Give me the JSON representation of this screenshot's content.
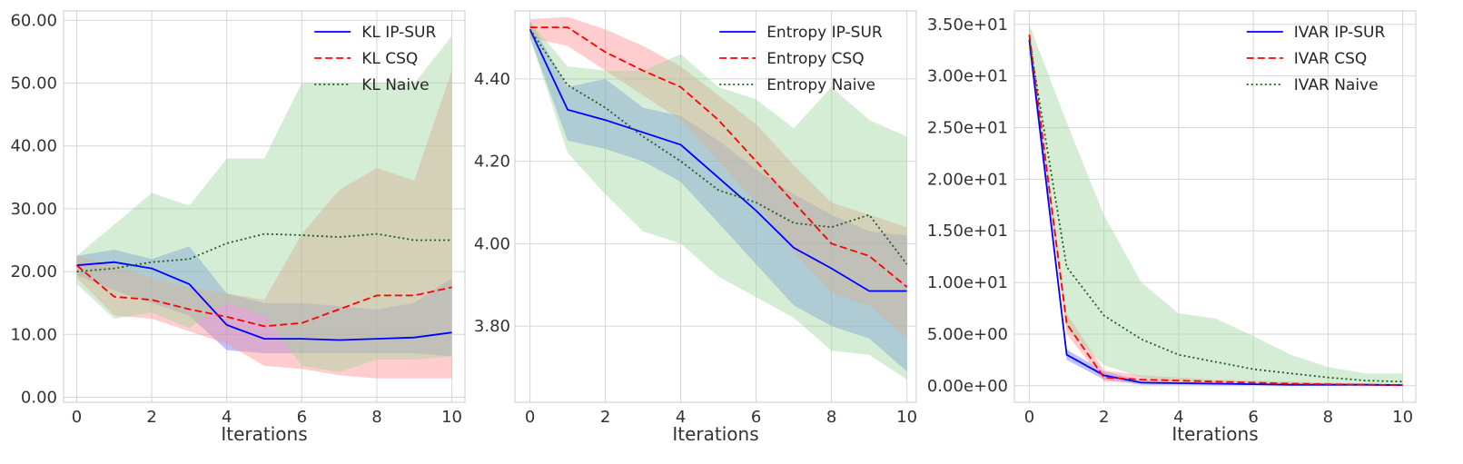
{
  "chart_data": [
    {
      "type": "line",
      "title": "",
      "xlabel": "Iterations",
      "ylabel": "",
      "x": [
        0,
        1,
        2,
        3,
        4,
        5,
        6,
        7,
        8,
        9,
        10
      ],
      "xticks": [
        0,
        2,
        4,
        6,
        8,
        10
      ],
      "xtick_labels": [
        "0",
        "2",
        "4",
        "6",
        "8",
        "10"
      ],
      "yticks": [
        0,
        10,
        20,
        30,
        40,
        50,
        60
      ],
      "ytick_labels": [
        "0.00",
        "10.00",
        "20.00",
        "30.00",
        "40.00",
        "50.00",
        "60.00"
      ],
      "xlim": [
        -0.35,
        10.35
      ],
      "ylim": [
        -0.8,
        61.5
      ],
      "grid": true,
      "legend_position": "top-right",
      "series": [
        {
          "name": "KL IP-SUR",
          "color": "#0000ff",
          "style": "solid",
          "fill": "#6b7bff",
          "values": [
            21.0,
            21.5,
            20.5,
            18.0,
            11.5,
            9.3,
            9.3,
            9.1,
            9.3,
            9.5,
            10.3
          ],
          "lower": [
            19.5,
            17.0,
            15.0,
            13.0,
            7.5,
            7.0,
            7.0,
            7.0,
            7.0,
            7.0,
            6.5
          ],
          "upper": [
            22.5,
            23.5,
            22.0,
            24.0,
            16.5,
            15.0,
            15.0,
            14.5,
            14.0,
            15.0,
            19.0
          ]
        },
        {
          "name": "KL CSQ",
          "color": "#ff0000",
          "style": "dashed",
          "fill": "#ff9090",
          "values": [
            21.0,
            16.0,
            15.5,
            14.0,
            12.8,
            11.3,
            11.8,
            14.0,
            16.2,
            16.2,
            17.5
          ],
          "lower": [
            19.0,
            13.0,
            12.5,
            10.5,
            8.5,
            5.0,
            4.5,
            3.5,
            3.0,
            3.0,
            3.0
          ],
          "upper": [
            22.5,
            21.0,
            19.0,
            17.5,
            16.5,
            15.5,
            26.0,
            33.0,
            36.5,
            34.5,
            52.0
          ]
        },
        {
          "name": "KL Naive",
          "color": "#1a5e1a",
          "style": "dotted",
          "fill": "#9fd89f",
          "values": [
            20.0,
            20.5,
            21.5,
            22.0,
            24.5,
            26.0,
            25.8,
            25.5,
            26.0,
            25.0,
            25.0
          ],
          "lower": [
            18.0,
            12.5,
            13.5,
            11.0,
            15.0,
            13.0,
            5.0,
            4.0,
            6.0,
            6.0,
            6.5
          ],
          "upper": [
            22.5,
            27.5,
            32.5,
            30.5,
            38.0,
            38.0,
            50.0,
            50.0,
            50.0,
            50.0,
            57.5
          ]
        }
      ]
    },
    {
      "type": "line",
      "title": "",
      "xlabel": "Iterations",
      "ylabel": "",
      "x": [
        0,
        1,
        2,
        3,
        4,
        5,
        6,
        7,
        8,
        9,
        10
      ],
      "xticks": [
        0,
        2,
        4,
        6,
        8,
        10
      ],
      "xtick_labels": [
        "0",
        "2",
        "4",
        "6",
        "8",
        "10"
      ],
      "yticks": [
        3.8,
        4.0,
        4.2,
        4.4
      ],
      "ytick_labels": [
        "3.80",
        "4.00",
        "4.20",
        "4.40"
      ],
      "xlim": [
        -0.4,
        10.25
      ],
      "ylim": [
        3.615,
        4.565
      ],
      "grid": true,
      "legend_position": "top-right",
      "series": [
        {
          "name": "Entropy IP-SUR",
          "color": "#0000ff",
          "style": "solid",
          "fill": "#6b7bff",
          "values": [
            4.52,
            4.325,
            4.3,
            4.27,
            4.24,
            4.16,
            4.08,
            3.99,
            3.94,
            3.885,
            3.885
          ],
          "lower": [
            4.5,
            4.25,
            4.23,
            4.2,
            4.15,
            4.05,
            3.95,
            3.85,
            3.8,
            3.77,
            3.69
          ],
          "upper": [
            4.54,
            4.38,
            4.4,
            4.33,
            4.31,
            4.25,
            4.18,
            4.12,
            4.07,
            4.03,
            4.02
          ]
        },
        {
          "name": "Entropy CSQ",
          "color": "#ff0000",
          "style": "dashed",
          "fill": "#ff9090",
          "values": [
            4.525,
            4.525,
            4.465,
            4.42,
            4.38,
            4.3,
            4.2,
            4.1,
            4.0,
            3.97,
            3.895
          ],
          "lower": [
            4.5,
            4.48,
            4.42,
            4.36,
            4.3,
            4.2,
            4.1,
            3.98,
            3.88,
            3.85,
            3.77
          ],
          "upper": [
            4.545,
            4.55,
            4.52,
            4.48,
            4.43,
            4.36,
            4.29,
            4.19,
            4.1,
            4.07,
            4.04
          ]
        },
        {
          "name": "Entropy Naive",
          "color": "#1a5e1a",
          "style": "dotted",
          "fill": "#9fd89f",
          "values": [
            4.52,
            4.385,
            4.33,
            4.26,
            4.2,
            4.13,
            4.1,
            4.05,
            4.04,
            4.07,
            3.95
          ],
          "lower": [
            4.5,
            4.22,
            4.12,
            4.03,
            4.0,
            3.92,
            3.87,
            3.82,
            3.74,
            3.73,
            3.67
          ],
          "upper": [
            4.54,
            4.43,
            4.42,
            4.42,
            4.46,
            4.38,
            4.35,
            4.28,
            4.38,
            4.3,
            4.26
          ]
        }
      ]
    },
    {
      "type": "line",
      "title": "",
      "xlabel": "Iterations",
      "ylabel": "",
      "x": [
        0,
        1,
        2,
        3,
        4,
        5,
        6,
        7,
        8,
        9,
        10
      ],
      "xticks": [
        0,
        2,
        4,
        6,
        8,
        10
      ],
      "xtick_labels": [
        "0",
        "2",
        "4",
        "6",
        "8",
        "10"
      ],
      "yticks": [
        0,
        5,
        10,
        15,
        20,
        25,
        30,
        35
      ],
      "ytick_labels": [
        "0.00e+00",
        "5.00e+00",
        "1.00e+01",
        "1.50e+01",
        "2.00e+01",
        "2.50e+01",
        "3.00e+01",
        "3.50e+01"
      ],
      "xlim": [
        -0.4,
        10.35
      ],
      "ylim": [
        -1.6,
        36.3
      ],
      "grid": true,
      "legend_position": "top-right",
      "series": [
        {
          "name": "IVAR IP-SUR",
          "color": "#0000ff",
          "style": "solid",
          "fill": "#6b7bff",
          "values": [
            33.5,
            3.0,
            1.0,
            0.3,
            0.25,
            0.2,
            0.15,
            0.1,
            0.1,
            0.1,
            0.05
          ],
          "lower": [
            32.5,
            2.5,
            0.6,
            0.1,
            0.1,
            0.05,
            0.05,
            0.02,
            0.02,
            0.02,
            0.01
          ],
          "upper": [
            34.5,
            3.5,
            1.4,
            0.5,
            0.4,
            0.3,
            0.25,
            0.2,
            0.2,
            0.15,
            0.1
          ]
        },
        {
          "name": "IVAR CSQ",
          "color": "#ff0000",
          "style": "dashed",
          "fill": "#ff9090",
          "values": [
            34.0,
            6.0,
            0.8,
            0.6,
            0.5,
            0.4,
            0.3,
            0.2,
            0.15,
            0.1,
            0.05
          ],
          "lower": [
            33.0,
            5.0,
            0.4,
            0.3,
            0.2,
            0.15,
            0.1,
            0.05,
            0.05,
            0.02,
            0.01
          ],
          "upper": [
            35.0,
            7.0,
            1.5,
            1.0,
            0.8,
            0.6,
            0.5,
            0.4,
            0.3,
            0.2,
            0.15
          ]
        },
        {
          "name": "IVAR Naive",
          "color": "#1a5e1a",
          "style": "dotted",
          "fill": "#9fd89f",
          "values": [
            33.5,
            11.5,
            6.8,
            4.5,
            3.0,
            2.3,
            1.6,
            1.2,
            0.8,
            0.5,
            0.4
          ],
          "lower": [
            32.5,
            5.5,
            2.0,
            0.8,
            0.5,
            0.3,
            0.2,
            0.15,
            0.1,
            0.1,
            0.1
          ],
          "upper": [
            35.0,
            25.5,
            16.5,
            10.0,
            7.0,
            6.5,
            4.8,
            3.0,
            1.8,
            1.2,
            1.2
          ]
        }
      ]
    }
  ]
}
